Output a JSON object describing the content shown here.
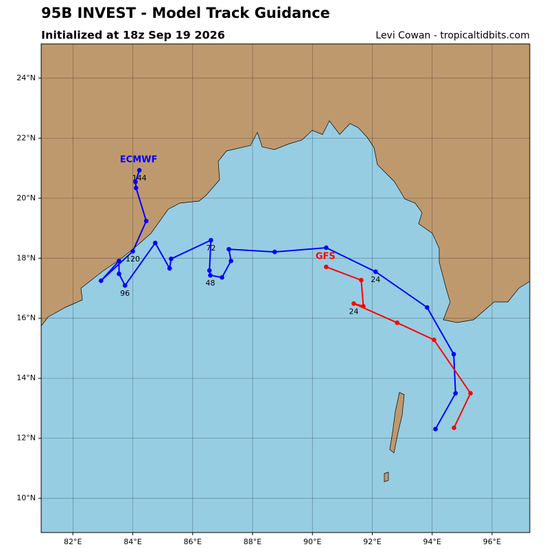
{
  "chart_data": {
    "type": "map",
    "title": "95B INVEST - Model Track Guidance",
    "subtitle": "Initialized at 18z Sep 19 2026",
    "credit": "Levi Cowan - tropicaltidbits.com",
    "xlim": [
      80.94,
      97.26
    ],
    "ylim": [
      8.86,
      25.14
    ],
    "xticks": [
      {
        "value": 82,
        "label": "82°E"
      },
      {
        "value": 84,
        "label": "84°E"
      },
      {
        "value": 86,
        "label": "86°E"
      },
      {
        "value": 88,
        "label": "88°E"
      },
      {
        "value": 90,
        "label": "90°E"
      },
      {
        "value": 92,
        "label": "92°E"
      },
      {
        "value": 94,
        "label": "94°E"
      },
      {
        "value": 96,
        "label": "96°E"
      }
    ],
    "yticks": [
      {
        "value": 10,
        "label": "10°N"
      },
      {
        "value": 12,
        "label": "12°N"
      },
      {
        "value": 14,
        "label": "14°N"
      },
      {
        "value": 16,
        "label": "16°N"
      },
      {
        "value": 18,
        "label": "18°N"
      },
      {
        "value": 20,
        "label": "20°N"
      },
      {
        "value": 22,
        "label": "22°N"
      },
      {
        "value": 24,
        "label": "24°N"
      }
    ],
    "grid": true,
    "series": [
      {
        "name": "ECMWF",
        "color": "#0000ff",
        "lon": [
          94.11,
          94.78,
          94.72,
          93.83,
          92.11,
          90.46,
          88.74,
          87.21,
          87.28,
          86.98,
          86.59,
          86.56,
          86.61,
          85.28,
          85.23,
          84.75,
          83.74,
          83.54,
          83.54,
          82.94,
          84.0,
          84.45,
          84.11,
          84.09,
          84.22
        ],
        "lat": [
          12.31,
          13.5,
          14.8,
          16.36,
          17.55,
          18.35,
          18.21,
          18.3,
          17.91,
          17.36,
          17.43,
          17.59,
          18.6,
          17.98,
          17.66,
          18.51,
          17.09,
          17.48,
          17.91,
          17.25,
          18.23,
          19.24,
          20.34,
          20.54,
          20.93
        ],
        "point_labels": [
          null,
          null,
          null,
          null,
          24,
          null,
          null,
          null,
          null,
          null,
          48,
          null,
          72,
          null,
          null,
          null,
          96,
          null,
          null,
          null,
          120,
          null,
          null,
          null,
          144
        ]
      },
      {
        "name": "GFS",
        "color": "#ff0000",
        "lon": [
          94.73,
          95.28,
          94.06,
          92.83,
          91.38,
          91.7,
          91.63,
          90.46
        ],
        "lat": [
          12.35,
          13.5,
          15.28,
          15.85,
          16.49,
          16.4,
          17.27,
          17.71
        ],
        "point_labels": [
          null,
          null,
          null,
          null,
          24,
          null,
          null,
          null
        ]
      }
    ]
  }
}
